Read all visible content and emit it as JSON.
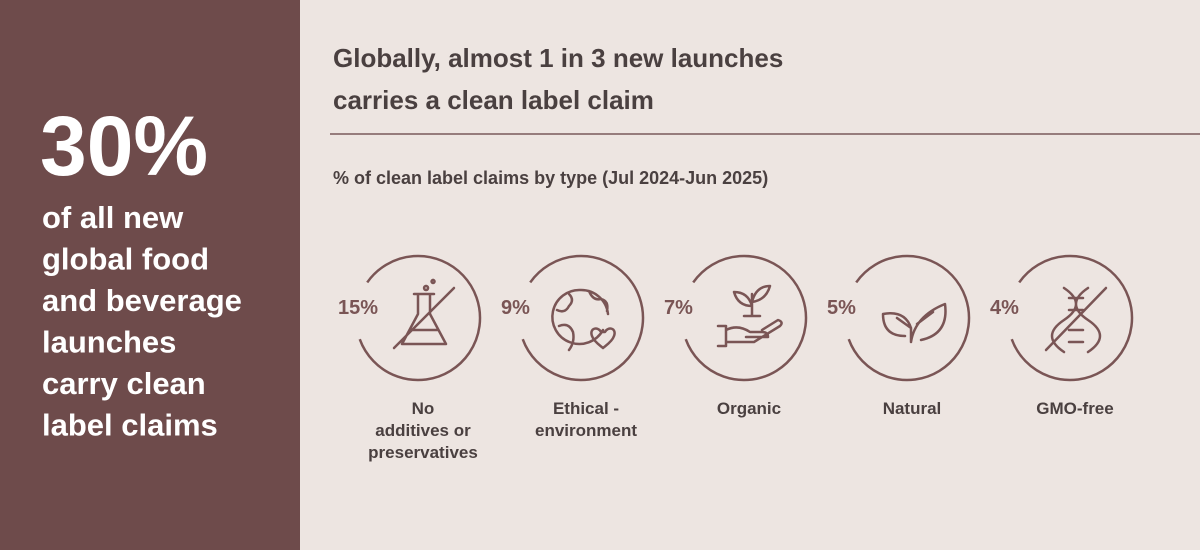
{
  "left_panel": {
    "headline": "30%",
    "lines": [
      "of all new",
      "global food",
      "and beverage",
      "launches",
      "carry clean",
      "label claims"
    ]
  },
  "header": {
    "title_lines": [
      "Globally, almost 1 in 3 new launches",
      "carries a clean label claim"
    ],
    "subtitle": "% of clean label claims by type (Jul 2024-Jun 2025)"
  },
  "claims": [
    {
      "percent": "15%",
      "label_lines": [
        "No",
        "additives or",
        "preservatives"
      ]
    },
    {
      "percent": "9%",
      "label_lines": [
        "Ethical -",
        "environment"
      ]
    },
    {
      "percent": "7%",
      "label_lines": [
        "Organic"
      ]
    },
    {
      "percent": "5%",
      "label_lines": [
        "Natural"
      ]
    },
    {
      "percent": "4%",
      "label_lines": [
        "GMO-free"
      ]
    }
  ]
}
